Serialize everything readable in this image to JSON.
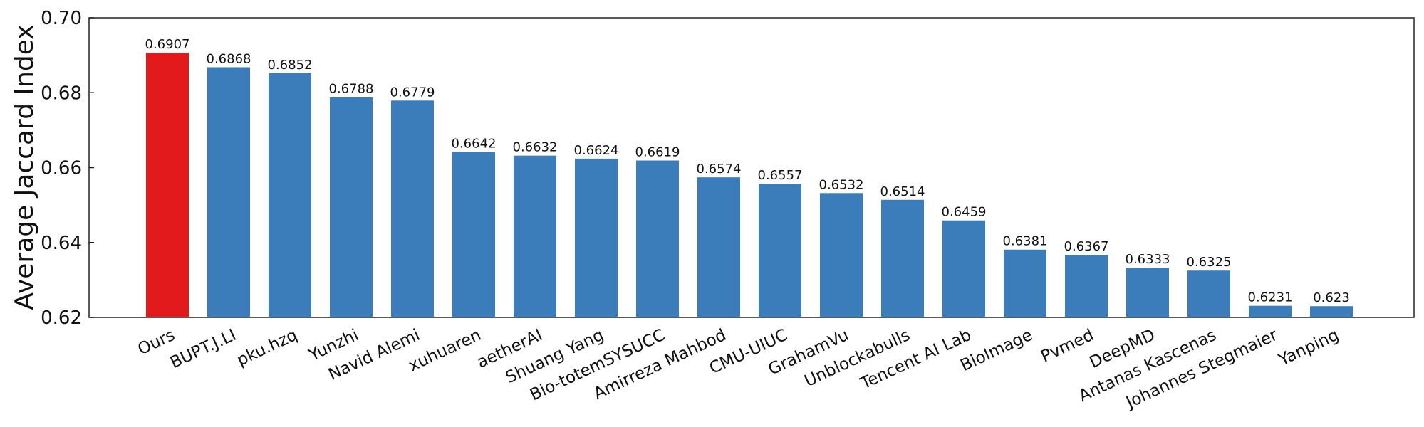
{
  "chart_data": {
    "type": "bar",
    "categories": [
      "Ours",
      "BUPT.J.LI",
      "pku.hzq",
      "Yunzhi",
      "Navid Alemi",
      "xuhuaren",
      "aetherAI",
      "Shuang Yang",
      "Bio-totemSYSUCC",
      "Amirreza Mahbod",
      "CMU-UIUC",
      "GrahamVu",
      "Unblockabulls",
      "Tencent AI Lab",
      "BioImage",
      "Pvmed",
      "DeepMD",
      "Antanas Kascenas",
      "Johannes Stegmaier",
      "Yanping"
    ],
    "values": [
      0.6907,
      0.6868,
      0.6852,
      0.6788,
      0.6779,
      0.6642,
      0.6632,
      0.6624,
      0.6619,
      0.6574,
      0.6557,
      0.6532,
      0.6514,
      0.6459,
      0.6381,
      0.6367,
      0.6333,
      0.6325,
      0.6231,
      0.623
    ],
    "value_labels": [
      "0.6907",
      "0.6868",
      "0.6852",
      "0.6788",
      "0.6779",
      "0.6642",
      "0.6632",
      "0.6624",
      "0.6619",
      "0.6574",
      "0.6557",
      "0.6532",
      "0.6514",
      "0.6459",
      "0.6381",
      "0.6367",
      "0.6333",
      "0.6325",
      "0.6231",
      "0.623"
    ],
    "ylabel": "Average Jaccard Index",
    "xlabel": "",
    "ylim": [
      0.62,
      0.7
    ],
    "yticks": [
      "0.62",
      "0.64",
      "0.66",
      "0.68",
      "0.70"
    ],
    "ytick_values": [
      0.62,
      0.64,
      0.66,
      0.68,
      0.7
    ],
    "grid": false,
    "highlight_color": "#e31a1c",
    "bar_color": "#3a7dba",
    "highlight_category": "Ours"
  }
}
